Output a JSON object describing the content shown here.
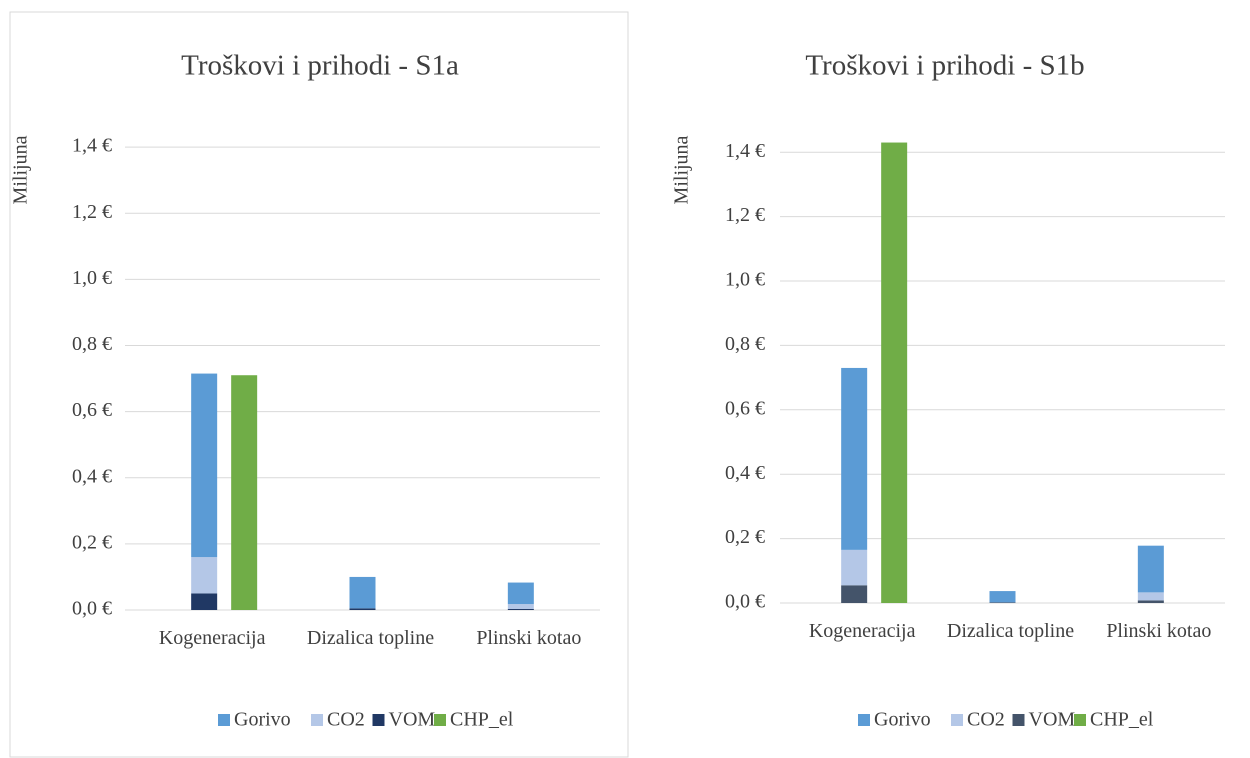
{
  "chart_data": [
    {
      "type": "bar",
      "title": "Troškovi i prihodi - S1a",
      "y_label": "Milijuna",
      "categories": [
        "Kogeneracija",
        "Dizalica topline",
        "Plinski kotao"
      ],
      "series": [
        {
          "name": "Gorivo",
          "color": "#5b9bd5",
          "stack": "cost",
          "values": [
            0.555,
            0.095,
            0.065
          ]
        },
        {
          "name": "CO2",
          "color": "#b4c7e7",
          "stack": "cost",
          "values": [
            0.11,
            0,
            0.015
          ]
        },
        {
          "name": "VOM",
          "color": "#203864",
          "stack": "cost",
          "values": [
            0.05,
            0.005,
            0.003
          ]
        },
        {
          "name": "CHP_el",
          "color": "#70ad47",
          "stack": "revenue",
          "values": [
            0.71,
            0,
            0
          ]
        }
      ],
      "ylim": [
        0,
        1.5
      ],
      "yticks": [
        {
          "value": 0,
          "label": "0,0 €"
        },
        {
          "value": 0.2,
          "label": "0,2 €"
        },
        {
          "value": 0.4,
          "label": "0,4 €"
        },
        {
          "value": 0.6,
          "label": "0,6 €"
        },
        {
          "value": 0.8,
          "label": "0,8 €"
        },
        {
          "value": 1.0,
          "label": "1,0 €"
        },
        {
          "value": 1.2,
          "label": "1,2 €"
        },
        {
          "value": 1.4,
          "label": "1,4 €"
        }
      ],
      "grid": true,
      "legend": "bottom"
    },
    {
      "type": "bar",
      "title": "Troškovi i prihodi - S1b",
      "y_label": "Milijuna",
      "categories": [
        "Kogeneracija",
        "Dizalica topline",
        "Plinski kotao"
      ],
      "series": [
        {
          "name": "Gorivo",
          "color": "#5b9bd5",
          "stack": "cost",
          "values": [
            0.565,
            0.035,
            0.145
          ]
        },
        {
          "name": "CO2",
          "color": "#b4c7e7",
          "stack": "cost",
          "values": [
            0.11,
            0,
            0.025
          ]
        },
        {
          "name": "VOM",
          "color": "#44546a",
          "stack": "cost",
          "values": [
            0.055,
            0.002,
            0.008
          ]
        },
        {
          "name": "CHP_el",
          "color": "#70ad47",
          "stack": "revenue",
          "values": [
            1.43,
            0,
            0
          ]
        }
      ],
      "ylim": [
        0,
        1.5
      ],
      "yticks": [
        {
          "value": 0,
          "label": "0,0 €"
        },
        {
          "value": 0.2,
          "label": "0,2 €"
        },
        {
          "value": 0.4,
          "label": "0,4 €"
        },
        {
          "value": 0.6,
          "label": "0,6 €"
        },
        {
          "value": 0.8,
          "label": "0,8 €"
        },
        {
          "value": 1.0,
          "label": "1,0 €"
        },
        {
          "value": 1.2,
          "label": "1,2 €"
        },
        {
          "value": 1.4,
          "label": "1,4 €"
        }
      ],
      "grid": true,
      "legend": "bottom"
    }
  ]
}
